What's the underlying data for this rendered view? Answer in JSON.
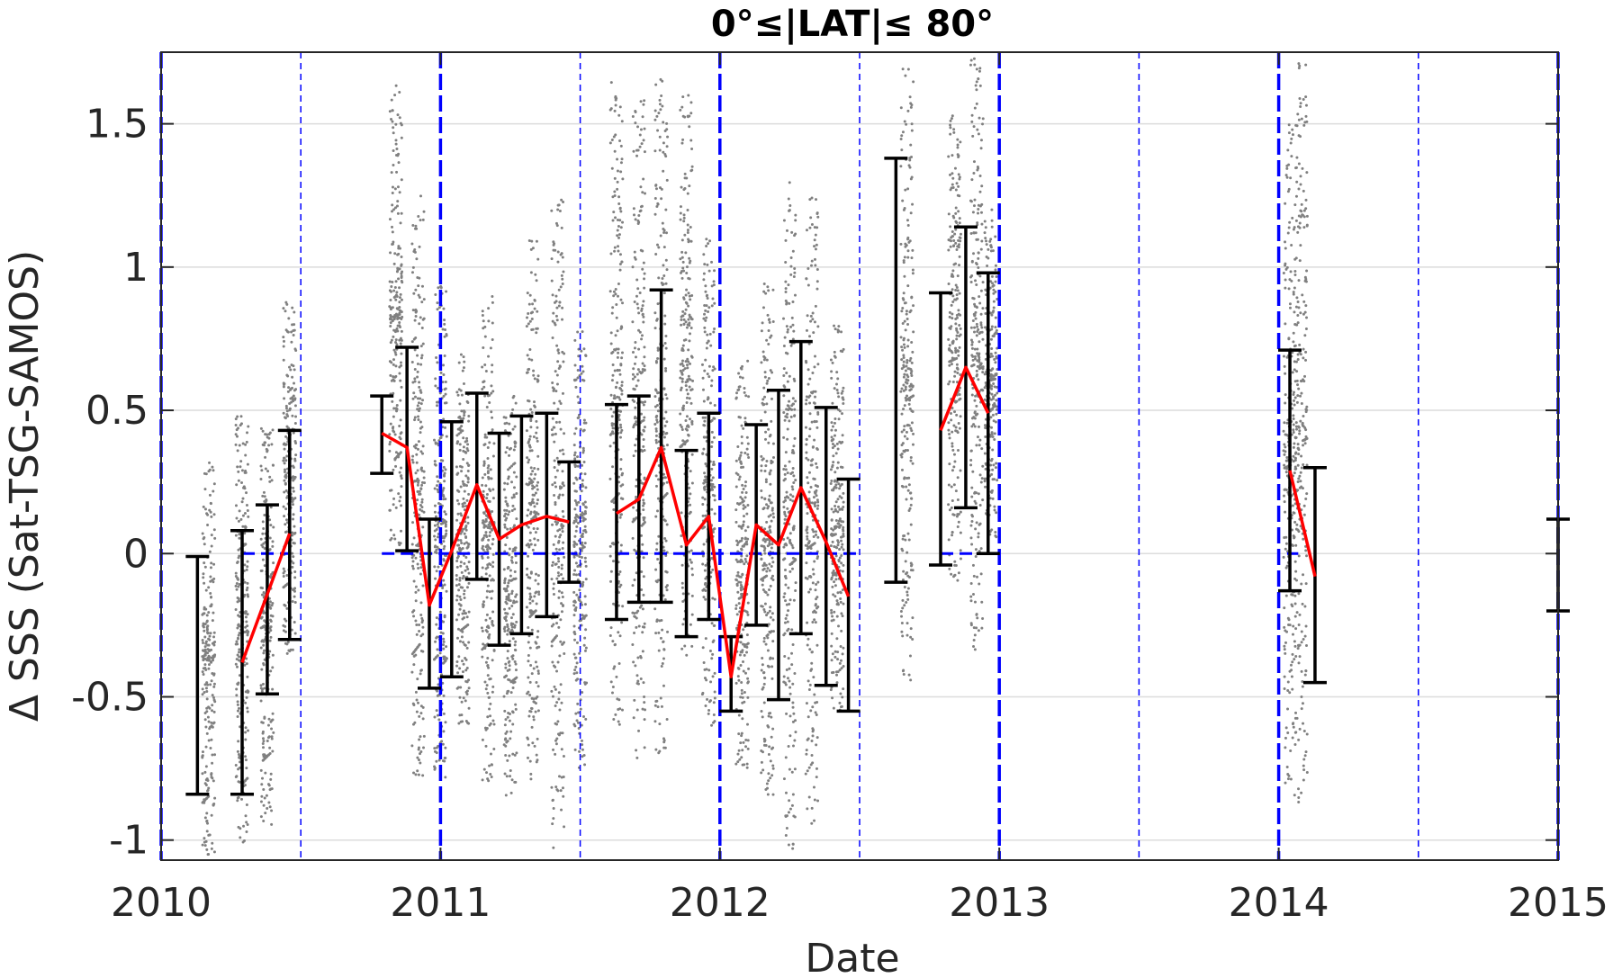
{
  "chart_data": {
    "type": "scatter",
    "title": "0°≤|LAT|≤ 80°",
    "xlabel": "Date",
    "ylabel": "Δ SSS (Sat-TSG-SAMOS)",
    "xlim": [
      2010,
      2015
    ],
    "ylim": [
      -1.07,
      1.75
    ],
    "xticks": [
      2010,
      2011,
      2012,
      2013,
      2014,
      2015
    ],
    "yticks": [
      -1,
      -0.5,
      0,
      0.5,
      1,
      1.5
    ],
    "ytick_labels": [
      "-1",
      "-0.5",
      "0",
      "0.5",
      "1",
      "1.5"
    ],
    "grid": "horizontal",
    "colors": {
      "points": "#808080",
      "mean_line": "#ff0000",
      "error_bars": "#000000",
      "reference_lines": "#0000ff"
    },
    "vertical_lines": {
      "thick_dashed": [
        2010,
        2011,
        2012,
        2013,
        2014,
        2015
      ],
      "thin_dashed": [
        2010.5,
        2011.5,
        2012.5,
        2013.5,
        2014.5
      ]
    },
    "zero_reference_segments": [
      [
        2010.29,
        2010.46
      ],
      [
        2010.79,
        2011.49
      ],
      [
        2011.63,
        2012.49
      ],
      [
        2012.79,
        2012.97
      ],
      [
        2014.03,
        2014.07
      ]
    ],
    "error_bars": [
      {
        "x": 2010.13,
        "low": -0.84,
        "high": -0.01
      },
      {
        "x": 2010.29,
        "low": -0.84,
        "high": 0.08
      },
      {
        "x": 2010.38,
        "low": -0.49,
        "high": 0.17
      },
      {
        "x": 2010.46,
        "low": -0.3,
        "high": 0.43
      },
      {
        "x": 2010.79,
        "low": 0.28,
        "high": 0.55
      },
      {
        "x": 2010.88,
        "low": 0.01,
        "high": 0.72
      },
      {
        "x": 2010.96,
        "low": -0.47,
        "high": 0.12
      },
      {
        "x": 2011.04,
        "low": -0.43,
        "high": 0.46
      },
      {
        "x": 2011.13,
        "low": -0.09,
        "high": 0.56
      },
      {
        "x": 2011.21,
        "low": -0.32,
        "high": 0.42
      },
      {
        "x": 2011.29,
        "low": -0.28,
        "high": 0.48
      },
      {
        "x": 2011.38,
        "low": -0.22,
        "high": 0.49
      },
      {
        "x": 2011.46,
        "low": -0.1,
        "high": 0.32
      },
      {
        "x": 2011.63,
        "low": -0.23,
        "high": 0.52
      },
      {
        "x": 2011.71,
        "low": -0.17,
        "high": 0.55
      },
      {
        "x": 2011.79,
        "low": -0.17,
        "high": 0.92
      },
      {
        "x": 2011.88,
        "low": -0.29,
        "high": 0.36
      },
      {
        "x": 2011.96,
        "low": -0.23,
        "high": 0.49
      },
      {
        "x": 2012.04,
        "low": -0.55,
        "high": -0.29
      },
      {
        "x": 2012.13,
        "low": -0.25,
        "high": 0.45
      },
      {
        "x": 2012.21,
        "low": -0.51,
        "high": 0.57
      },
      {
        "x": 2012.29,
        "low": -0.28,
        "high": 0.74
      },
      {
        "x": 2012.38,
        "low": -0.46,
        "high": 0.51
      },
      {
        "x": 2012.46,
        "low": -0.55,
        "high": 0.26
      },
      {
        "x": 2012.63,
        "low": -0.1,
        "high": 1.38
      },
      {
        "x": 2012.79,
        "low": -0.04,
        "high": 0.91
      },
      {
        "x": 2012.88,
        "low": 0.16,
        "high": 1.14
      },
      {
        "x": 2012.96,
        "low": 0.0,
        "high": 0.98
      },
      {
        "x": 2014.04,
        "low": -0.13,
        "high": 0.71
      },
      {
        "x": 2014.13,
        "low": -0.45,
        "high": 0.3
      },
      {
        "x": 2015.0,
        "low": -0.2,
        "high": 0.12
      }
    ],
    "series": [
      {
        "x": [
          2010.29,
          2010.46
        ],
        "y": [
          -0.38,
          0.07
        ]
      },
      {
        "x": [
          2010.79,
          2010.88,
          2010.96,
          2011.04,
          2011.13,
          2011.21,
          2011.29,
          2011.38,
          2011.46
        ],
        "y": [
          0.42,
          0.37,
          -0.18,
          0.01,
          0.24,
          0.05,
          0.1,
          0.13,
          0.11
        ]
      },
      {
        "x": [
          2011.63,
          2011.71,
          2011.79,
          2011.88,
          2011.96,
          2012.04,
          2012.13,
          2012.21,
          2012.29,
          2012.38,
          2012.46
        ],
        "y": [
          0.14,
          0.19,
          0.37,
          0.03,
          0.13,
          -0.43,
          0.1,
          0.03,
          0.23,
          0.04,
          -0.15
        ]
      },
      {
        "x": [
          2012.79,
          2012.88,
          2012.96
        ],
        "y": [
          0.43,
          0.65,
          0.49
        ]
      },
      {
        "x": [
          2014.04,
          2014.13
        ],
        "y": [
          0.29,
          -0.08
        ]
      }
    ],
    "scatter_clusters": [
      {
        "x": 2010.17,
        "low": -1.05,
        "high": 0.38
      },
      {
        "x": 2010.29,
        "low": -1.02,
        "high": 0.5
      },
      {
        "x": 2010.38,
        "low": -0.95,
        "high": 0.45
      },
      {
        "x": 2010.46,
        "low": -0.35,
        "high": 0.88
      },
      {
        "x": 2010.84,
        "low": 0.0,
        "high": 1.64
      },
      {
        "x": 2010.92,
        "low": -0.8,
        "high": 1.25
      },
      {
        "x": 2011.0,
        "low": -0.8,
        "high": 0.95
      },
      {
        "x": 2011.08,
        "low": -0.6,
        "high": 0.7
      },
      {
        "x": 2011.17,
        "low": -0.8,
        "high": 0.9
      },
      {
        "x": 2011.25,
        "low": -0.85,
        "high": 0.55
      },
      {
        "x": 2011.33,
        "low": -0.8,
        "high": 1.1
      },
      {
        "x": 2011.42,
        "low": -1.05,
        "high": 1.25
      },
      {
        "x": 2011.5,
        "low": -0.75,
        "high": 0.8
      },
      {
        "x": 2011.63,
        "low": -0.6,
        "high": 1.65
      },
      {
        "x": 2011.71,
        "low": -0.75,
        "high": 1.6
      },
      {
        "x": 2011.79,
        "low": -0.7,
        "high": 1.66
      },
      {
        "x": 2011.88,
        "low": -0.4,
        "high": 1.6
      },
      {
        "x": 2011.96,
        "low": -0.6,
        "high": 1.1
      },
      {
        "x": 2012.08,
        "low": -0.75,
        "high": 0.7
      },
      {
        "x": 2012.17,
        "low": -0.85,
        "high": 0.95
      },
      {
        "x": 2012.25,
        "low": -1.05,
        "high": 1.3
      },
      {
        "x": 2012.33,
        "low": -0.95,
        "high": 1.25
      },
      {
        "x": 2012.42,
        "low": -0.55,
        "high": 0.8
      },
      {
        "x": 2012.67,
        "low": -0.45,
        "high": 1.7
      },
      {
        "x": 2012.84,
        "low": -0.1,
        "high": 1.55
      },
      {
        "x": 2012.92,
        "low": -0.35,
        "high": 1.75
      },
      {
        "x": 2012.97,
        "low": 0.05,
        "high": 1.2
      },
      {
        "x": 2014.04,
        "low": -0.85,
        "high": 1.5
      },
      {
        "x": 2014.08,
        "low": -0.9,
        "high": 1.72
      }
    ]
  }
}
